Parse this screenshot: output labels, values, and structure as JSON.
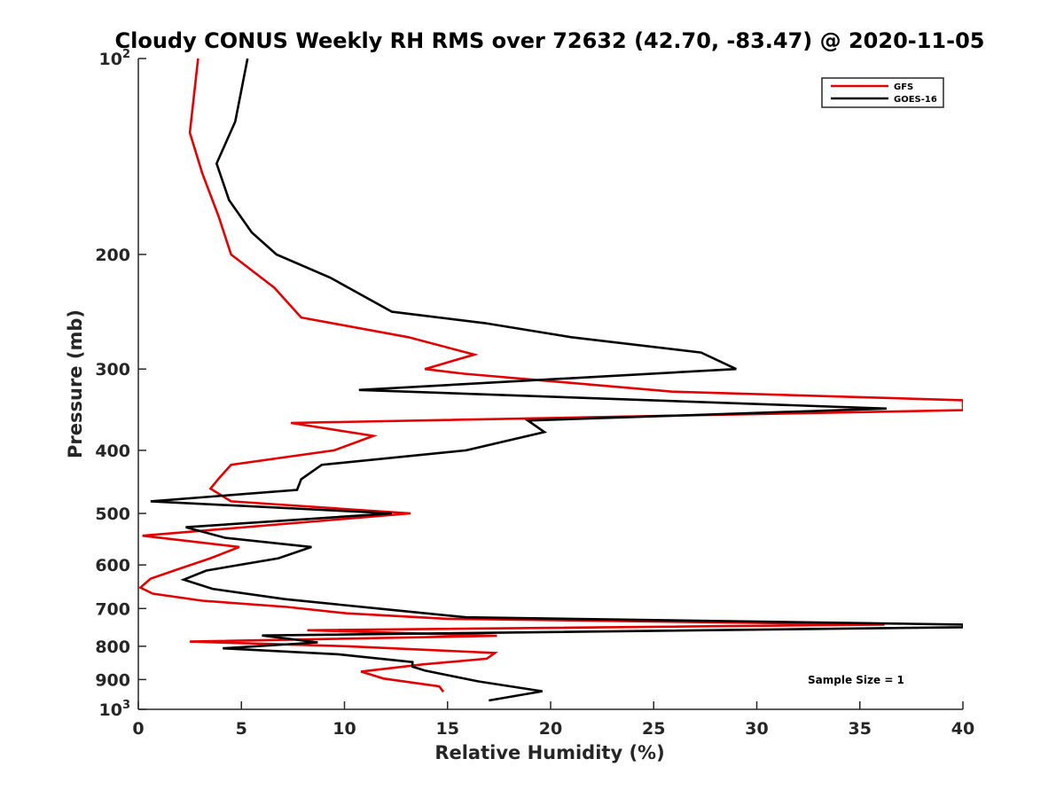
{
  "chart_data": {
    "type": "line",
    "title": "Cloudy CONUS Weekly RH RMS over 72632 (42.70, -83.47) @ 2020-11-05",
    "xlabel": "Relative Humidity (%)",
    "ylabel": "Pressure (mb)",
    "xlim": [
      0,
      40
    ],
    "ylim": [
      1000,
      100
    ],
    "yscale": "log",
    "y_reversed": true,
    "xticks": [
      0,
      5,
      10,
      15,
      20,
      25,
      30,
      35,
      40
    ],
    "yticks": [
      {
        "value": 100,
        "label": "10",
        "exp": "2"
      },
      {
        "value": 200,
        "label": "200",
        "exp": ""
      },
      {
        "value": 300,
        "label": "300",
        "exp": ""
      },
      {
        "value": 400,
        "label": "400",
        "exp": ""
      },
      {
        "value": 500,
        "label": "500",
        "exp": ""
      },
      {
        "value": 600,
        "label": "600",
        "exp": ""
      },
      {
        "value": 700,
        "label": "700",
        "exp": ""
      },
      {
        "value": 800,
        "label": "800",
        "exp": ""
      },
      {
        "value": 900,
        "label": "900",
        "exp": ""
      },
      {
        "value": 1000,
        "label": "10",
        "exp": "3"
      }
    ],
    "grid": false,
    "legend_position": "top-right",
    "annotation": "Sample Size = 1",
    "series": [
      {
        "name": "GFS",
        "color": "#e60000",
        "points": [
          [
            2.9,
            100
          ],
          [
            2.5,
            130
          ],
          [
            3.1,
            150
          ],
          [
            3.9,
            175
          ],
          [
            4.5,
            200
          ],
          [
            6.6,
            225
          ],
          [
            7.9,
            250
          ],
          [
            13.1,
            268
          ],
          [
            16.3,
            285
          ],
          [
            13.9,
            300
          ],
          [
            15.8,
            305
          ],
          [
            25.9,
            325
          ],
          [
            40,
            335
          ],
          [
            40,
            347
          ],
          [
            7.4,
            363
          ],
          [
            11.4,
            380
          ],
          [
            9.5,
            400
          ],
          [
            4.5,
            421
          ],
          [
            3.9,
            442
          ],
          [
            3.5,
            458
          ],
          [
            4.5,
            479
          ],
          [
            13.2,
            500
          ],
          [
            0.2,
            541
          ],
          [
            4.9,
            563
          ],
          [
            3.5,
            586
          ],
          [
            1.8,
            611
          ],
          [
            0.6,
            630
          ],
          [
            0.1,
            650
          ],
          [
            0.7,
            664
          ],
          [
            3.1,
            681
          ],
          [
            7.2,
            696
          ],
          [
            10.1,
            712
          ],
          [
            15.0,
            726
          ],
          [
            36.2,
            741
          ],
          [
            8.2,
            756
          ],
          [
            17.4,
            771
          ],
          [
            2.5,
            787
          ],
          [
            10.2,
            800
          ],
          [
            17.3,
            819
          ],
          [
            16.9,
            836
          ],
          [
            13.8,
            853
          ],
          [
            10.8,
            875
          ],
          [
            11.9,
            897
          ],
          [
            14.6,
            922
          ],
          [
            14.8,
            940
          ]
        ]
      },
      {
        "name": "GOES-16",
        "color": "#000000",
        "points": [
          [
            5.3,
            100
          ],
          [
            4.7,
            125
          ],
          [
            3.8,
            145
          ],
          [
            4.4,
            165
          ],
          [
            5.5,
            185
          ],
          [
            6.7,
            200
          ],
          [
            9.3,
            217
          ],
          [
            12.3,
            245
          ],
          [
            16.8,
            255
          ],
          [
            21.0,
            268
          ],
          [
            27.3,
            283
          ],
          [
            29.0,
            300
          ],
          [
            10.7,
            323
          ],
          [
            36.3,
            345
          ],
          [
            18.9,
            360
          ],
          [
            19.7,
            375
          ],
          [
            15.9,
            400
          ],
          [
            8.9,
            421
          ],
          [
            7.9,
            443
          ],
          [
            7.7,
            460
          ],
          [
            0.6,
            479
          ],
          [
            12.3,
            500
          ],
          [
            2.3,
            525
          ],
          [
            4.2,
            545
          ],
          [
            8.4,
            563
          ],
          [
            6.8,
            586
          ],
          [
            3.3,
            612
          ],
          [
            2.2,
            632
          ],
          [
            3.6,
            653
          ],
          [
            7.1,
            677
          ],
          [
            12.0,
            702
          ],
          [
            15.9,
            722
          ],
          [
            40,
            741
          ],
          [
            40,
            748
          ],
          [
            6.0,
            770
          ],
          [
            8.7,
            789
          ],
          [
            4.1,
            806
          ],
          [
            9.7,
            823
          ],
          [
            13.3,
            846
          ],
          [
            13.3,
            860
          ],
          [
            13.9,
            872
          ],
          [
            16.5,
            906
          ],
          [
            19.6,
            938
          ],
          [
            17.0,
            969
          ]
        ]
      }
    ]
  }
}
